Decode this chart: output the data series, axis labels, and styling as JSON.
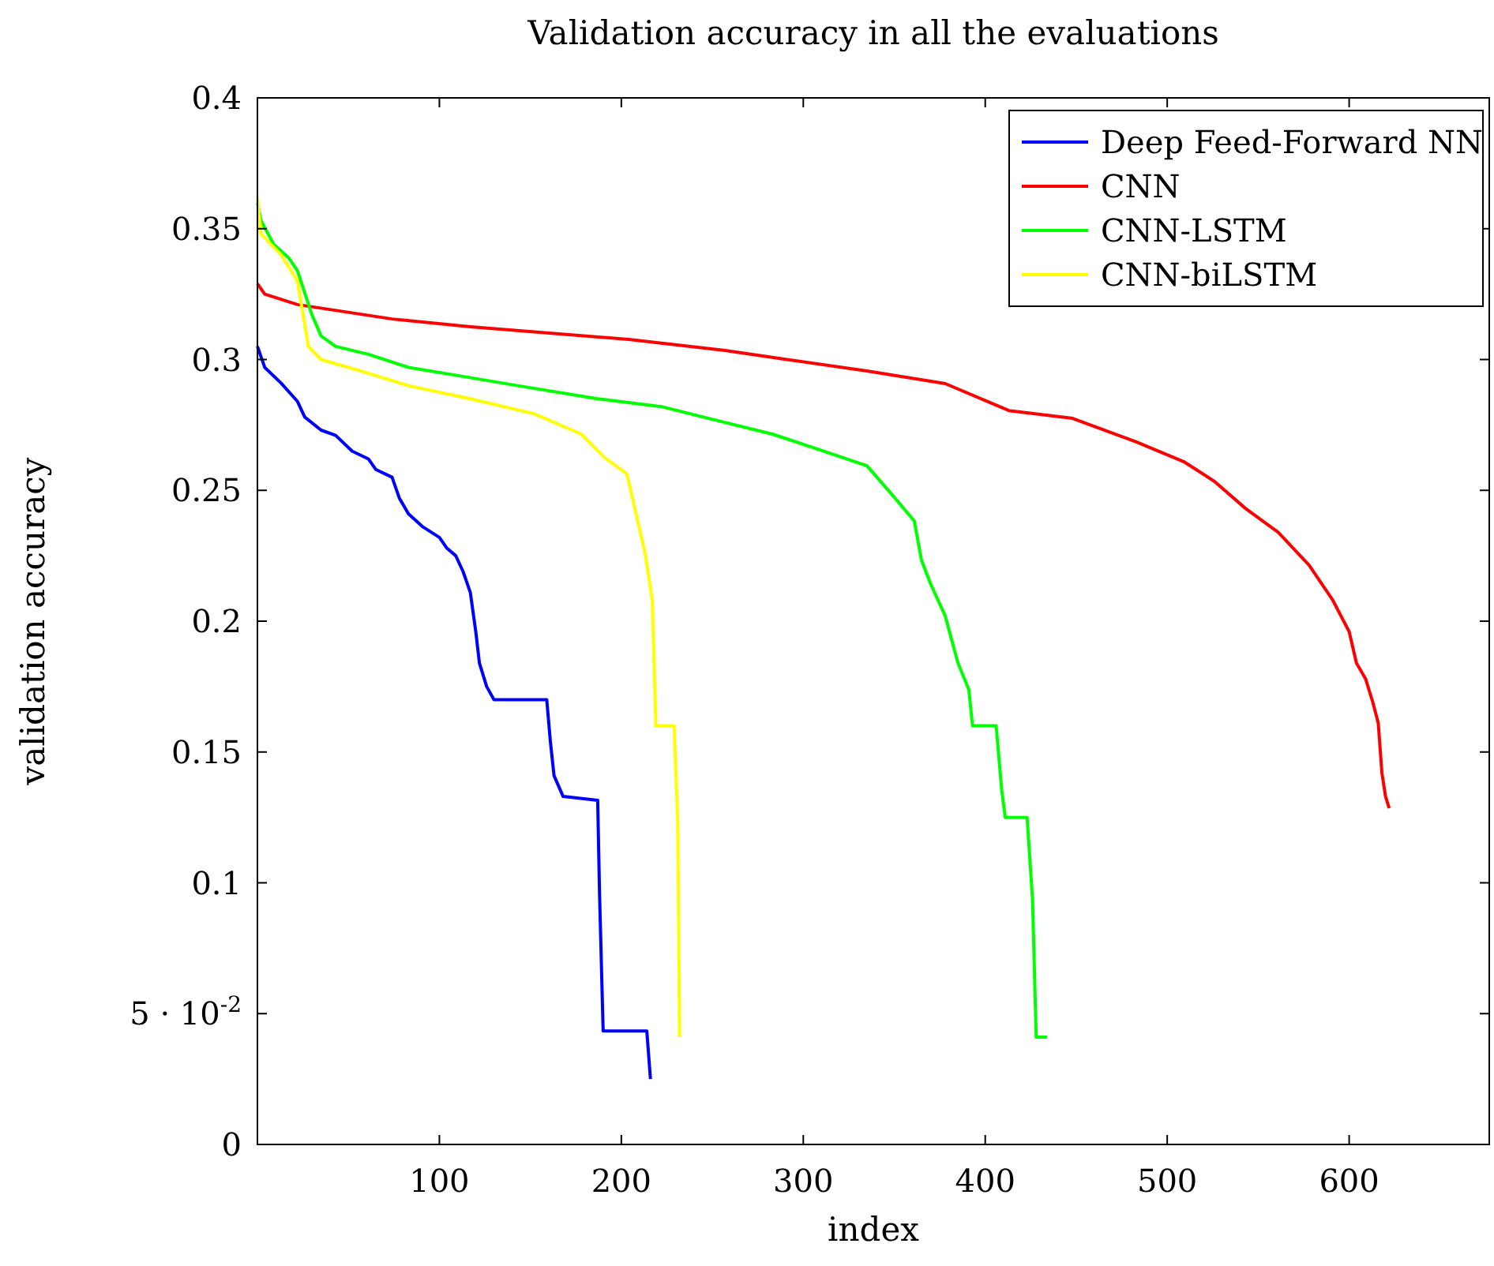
{
  "chart_data": {
    "type": "line",
    "title": "Validation accuracy in all the evaluations",
    "xlabel": "index",
    "ylabel": "validation accuracy",
    "xlim": [
      0,
      677
    ],
    "ylim": [
      0,
      0.4
    ],
    "xticks": [
      100,
      200,
      300,
      400,
      500,
      600
    ],
    "yticks": [
      0,
      {
        "value": 0.05,
        "label": "5 · 10$^{-2}$"
      },
      0.1,
      0.15,
      0.2,
      0.25,
      0.3,
      0.35,
      0.4
    ],
    "legend": "top right",
    "grid": false,
    "marker": "none",
    "line_style": "solid",
    "series": [
      {
        "name": "Deep Feed-Forward NN",
        "color": "#0000ff",
        "x": [
          0,
          4,
          13,
          22,
          26,
          35,
          43,
          52,
          61,
          65,
          74,
          78,
          83,
          91,
          100,
          104,
          109,
          113,
          117,
          120,
          122,
          126,
          130,
          159,
          161,
          163,
          168,
          187,
          188,
          190,
          214,
          216
        ],
        "values": [
          0.305,
          0.297,
          0.291,
          0.284,
          0.278,
          0.273,
          0.271,
          0.265,
          0.262,
          0.258,
          0.255,
          0.247,
          0.241,
          0.236,
          0.232,
          0.228,
          0.225,
          0.219,
          0.211,
          0.196,
          0.184,
          0.175,
          0.17,
          0.17,
          0.154,
          0.141,
          0.133,
          0.1315,
          0.0965,
          0.0434,
          0.0434,
          0.025
        ]
      },
      {
        "name": "CNN",
        "color": "#ff0000",
        "x": [
          0,
          4,
          22,
          74,
          117,
          204,
          257,
          291,
          335,
          378,
          413,
          448,
          483,
          509,
          526,
          543,
          561,
          578,
          591,
          600,
          604,
          609,
          613,
          616,
          618,
          620,
          622
        ],
        "values": [
          0.329,
          0.325,
          0.321,
          0.3155,
          0.3125,
          0.3077,
          0.3035,
          0.3,
          0.2956,
          0.2908,
          0.2805,
          0.2775,
          0.2685,
          0.261,
          0.2534,
          0.2431,
          0.234,
          0.2214,
          0.208,
          0.196,
          0.184,
          0.178,
          0.169,
          0.161,
          0.142,
          0.133,
          0.1285
        ]
      },
      {
        "name": "CNN-LSTM",
        "color": "#00ff00",
        "x": [
          0,
          2,
          9,
          17,
          22,
          30,
          35,
          43,
          61,
          83,
          109,
          143,
          187,
          222,
          248,
          283,
          309,
          335,
          348,
          361,
          365,
          370,
          378,
          385,
          391,
          393,
          406,
          409,
          411,
          423,
          426,
          428,
          434
        ],
        "values": [
          0.36,
          0.353,
          0.344,
          0.339,
          0.334,
          0.317,
          0.309,
          0.305,
          0.302,
          0.297,
          0.294,
          0.29,
          0.285,
          0.282,
          0.2775,
          0.2715,
          0.2655,
          0.2594,
          0.249,
          0.2383,
          0.2232,
          0.2142,
          0.202,
          0.184,
          0.1738,
          0.16,
          0.16,
          0.1357,
          0.125,
          0.125,
          0.0935,
          0.041,
          0.041
        ]
      },
      {
        "name": "CNN-biLSTM",
        "color": "#ffff00",
        "x": [
          0,
          2,
          13,
          22,
          28,
          35,
          57,
          83,
          117,
          152,
          178,
          191,
          203,
          207,
          213,
          217,
          219,
          229,
          231,
          232
        ],
        "values": [
          0.362,
          0.348,
          0.34,
          0.33,
          0.305,
          0.3,
          0.2956,
          0.29,
          0.285,
          0.2793,
          0.2715,
          0.2624,
          0.2564,
          0.2443,
          0.2262,
          0.2081,
          0.16,
          0.16,
          0.1237,
          0.041
        ]
      }
    ]
  }
}
